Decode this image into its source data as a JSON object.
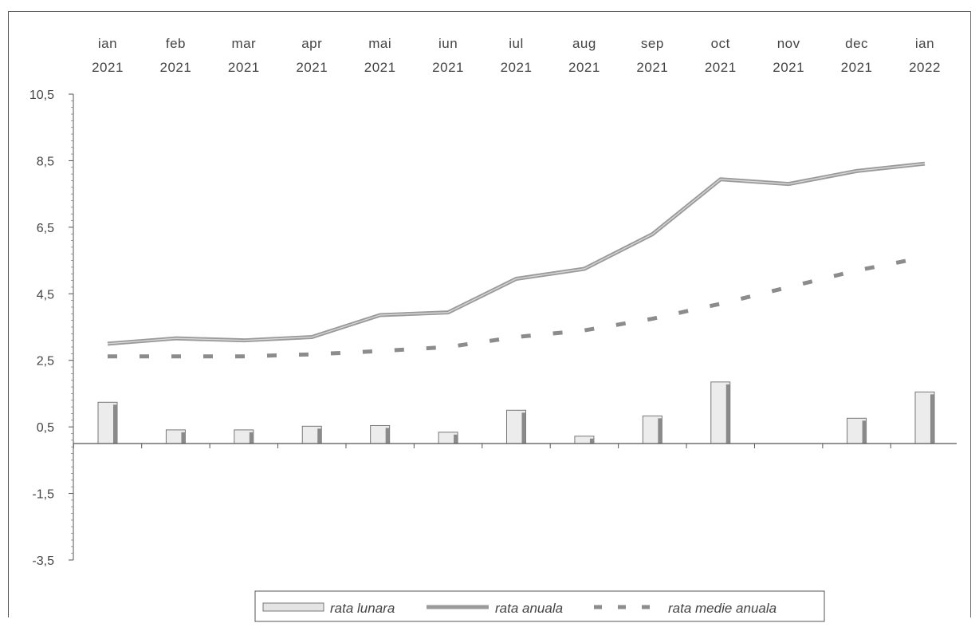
{
  "chart_data": {
    "type": "bar+line",
    "categories": [
      [
        "ian",
        "2021"
      ],
      [
        "feb",
        "2021"
      ],
      [
        "mar",
        "2021"
      ],
      [
        "apr",
        "2021"
      ],
      [
        "mai",
        "2021"
      ],
      [
        "iun",
        "2021"
      ],
      [
        "iul",
        "2021"
      ],
      [
        "aug",
        "2021"
      ],
      [
        "sep",
        "2021"
      ],
      [
        "oct",
        "2021"
      ],
      [
        "nov",
        "2021"
      ],
      [
        "dec",
        "2021"
      ],
      [
        "ian",
        "2022"
      ]
    ],
    "y_ticks": [
      "10,5",
      "8,5",
      "6,5",
      "4,5",
      "2,5",
      "0,5",
      "-1,5",
      "-3,5"
    ],
    "y_tick_values": [
      10.5,
      8.5,
      6.5,
      4.5,
      2.5,
      0.5,
      -1.5,
      -3.5
    ],
    "ylim": [
      -3.5,
      10.5
    ],
    "series": [
      {
        "name": "rata lunara",
        "type": "bar",
        "values": [
          1.24,
          0.41,
          0.41,
          0.52,
          0.54,
          0.34,
          1.0,
          0.22,
          0.83,
          1.85,
          0.0,
          0.76,
          1.55
        ]
      },
      {
        "name": "rata anuala",
        "type": "line",
        "values": [
          3.0,
          3.16,
          3.1,
          3.2,
          3.86,
          3.94,
          4.95,
          5.25,
          6.29,
          7.94,
          7.8,
          8.19,
          8.41
        ]
      },
      {
        "name": "rata medie anuala",
        "type": "dashed-line",
        "values": [
          2.62,
          2.62,
          2.62,
          2.68,
          2.78,
          2.9,
          3.2,
          3.4,
          3.75,
          4.2,
          4.7,
          5.2,
          5.6
        ]
      }
    ],
    "legend_position": "bottom-center",
    "grid": false,
    "colors": {
      "bar_fill": "#ececec",
      "bar_shade": "#8a8a8a",
      "line": "#9a9a9a",
      "dashed": "#8c8c8c",
      "axis": "#555555"
    }
  }
}
